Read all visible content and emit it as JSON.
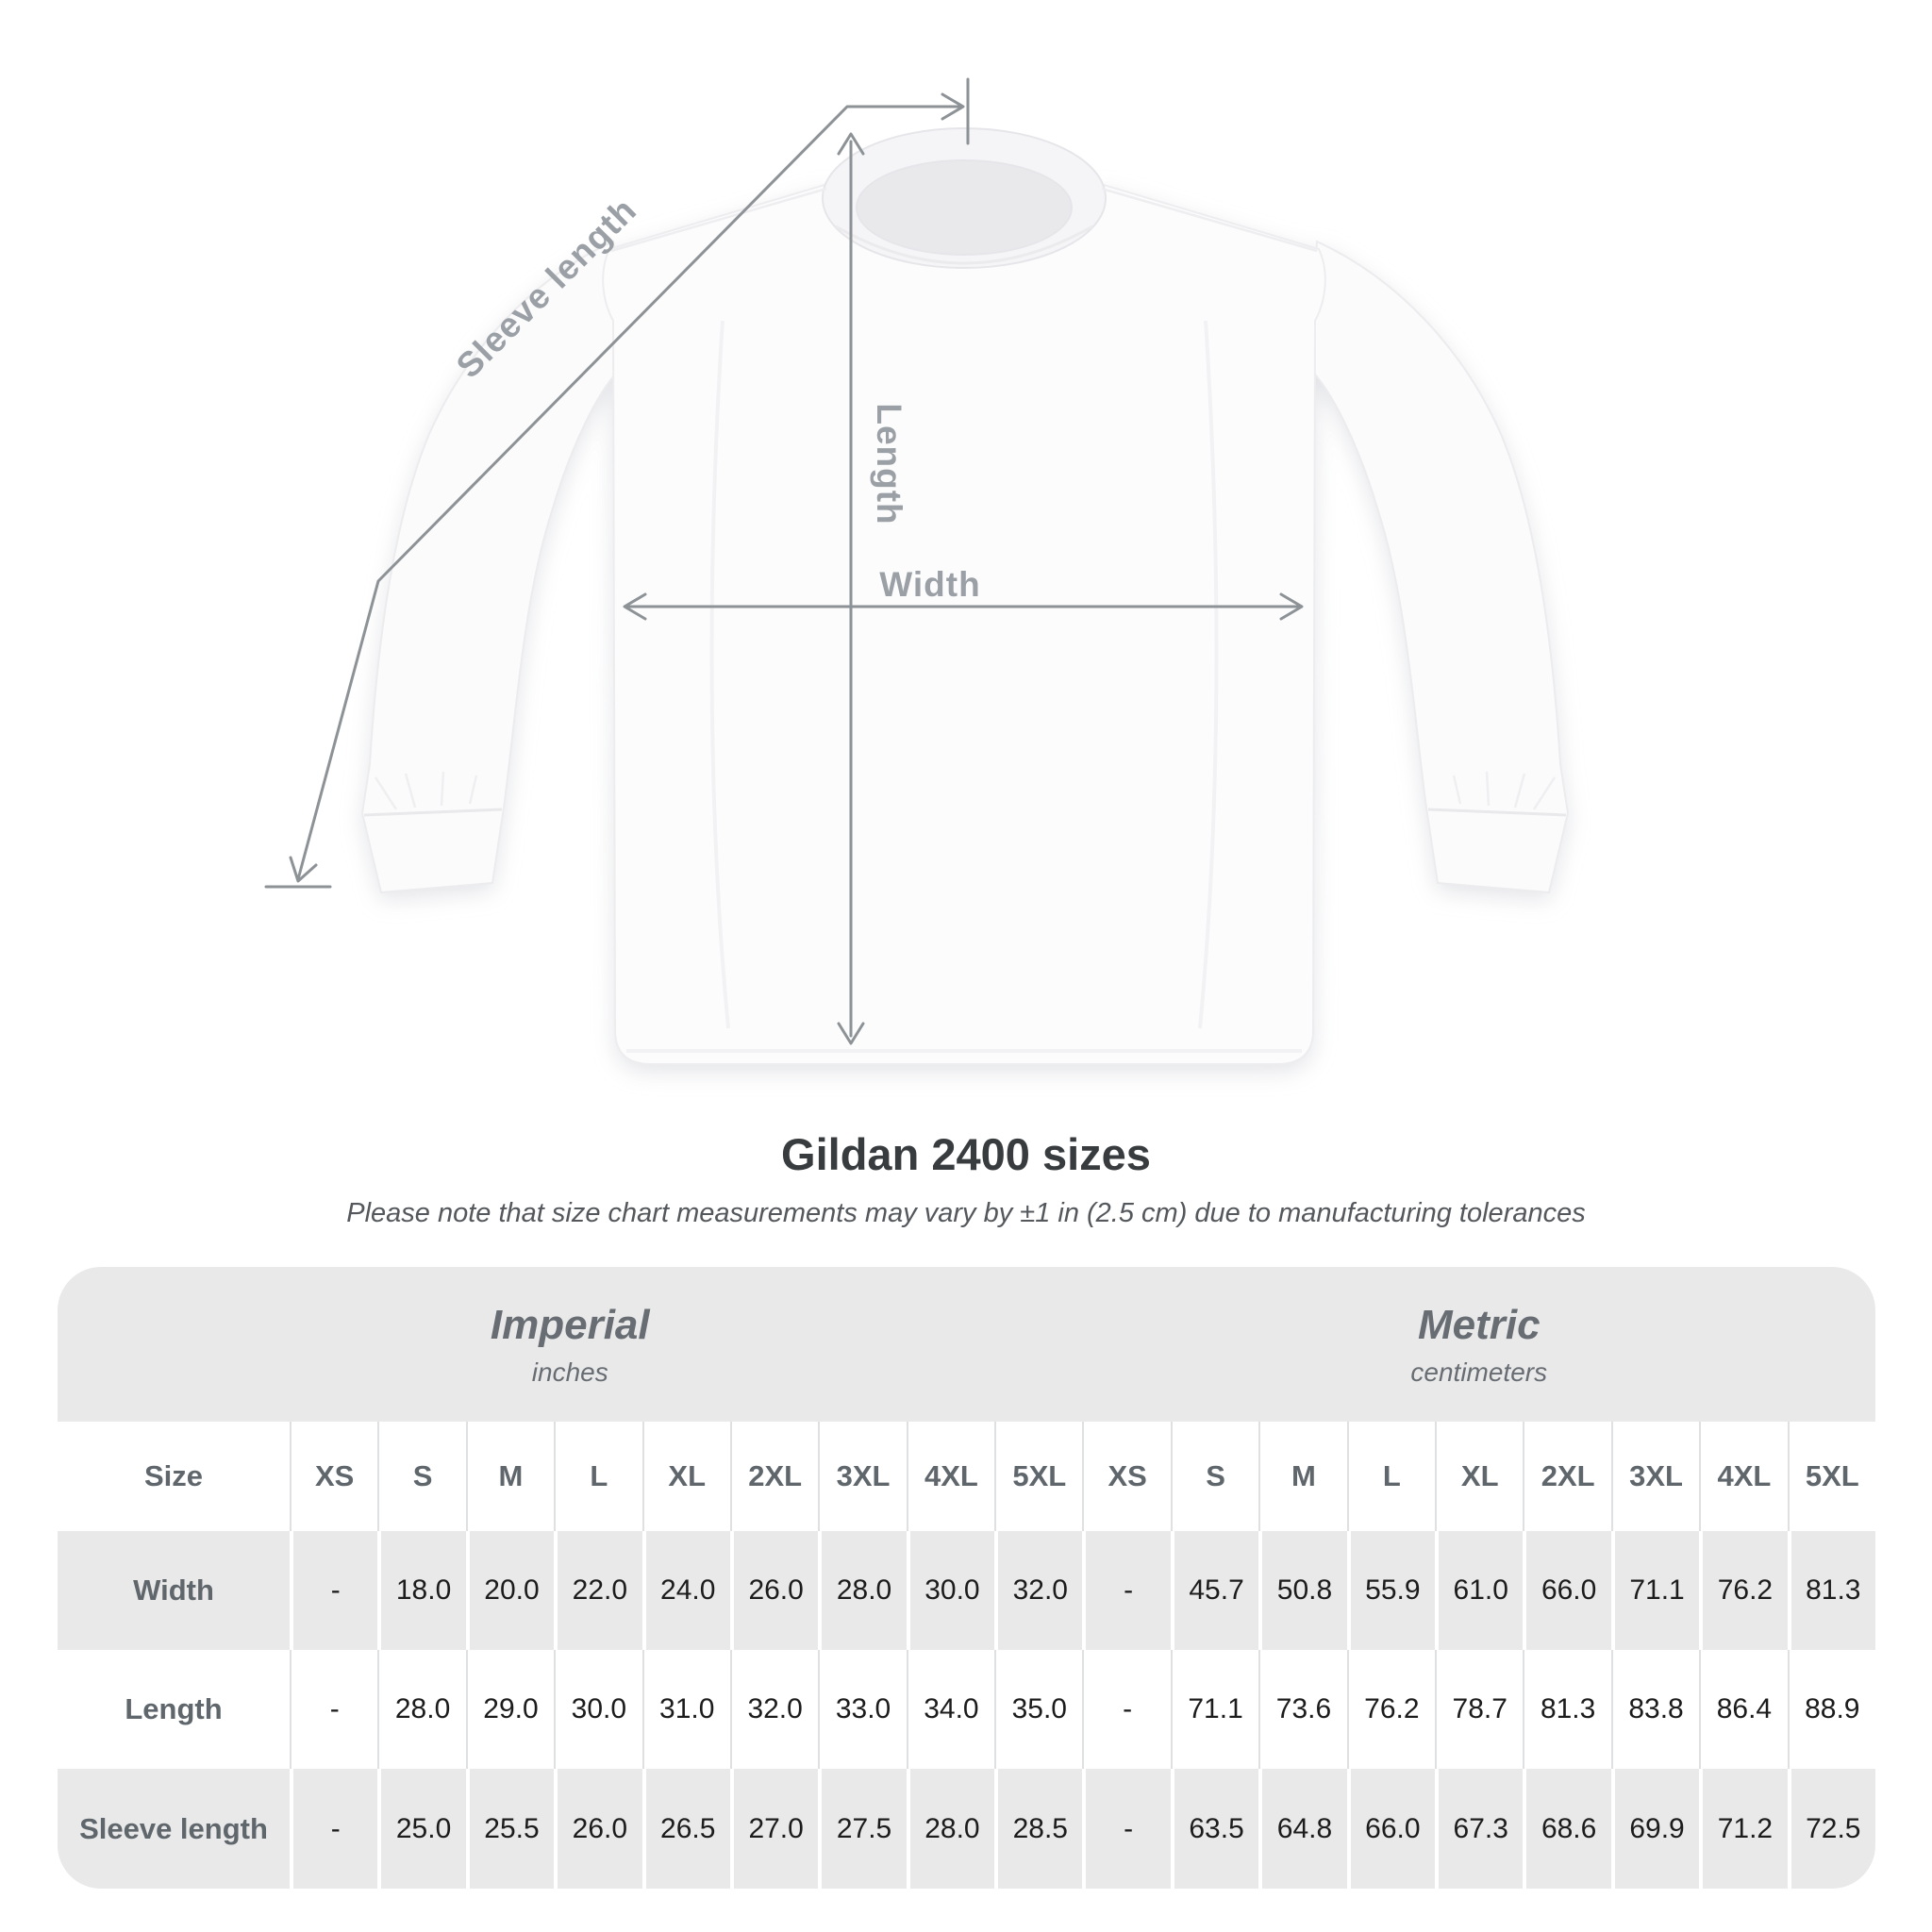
{
  "colors": {
    "table_band": "#e9e9e9",
    "measure_line": "#8d9296",
    "diagram_label": "#9aa0a5",
    "title_text": "#383c3f",
    "header_text": "#5f666c",
    "value_text": "#1c1c1c"
  },
  "diagram": {
    "sleeve_length_label": "Sleeve length",
    "length_label": "Length",
    "width_label": "Width"
  },
  "heading": {
    "title": "Gildan 2400 sizes",
    "subtitle": "Please note that size chart measurements may vary by ±1 in (2.5 cm) due to manufacturing tolerances"
  },
  "table": {
    "size_column_header": "Size",
    "groups": [
      {
        "name": "Imperial",
        "unit": "inches"
      },
      {
        "name": "Metric",
        "unit": "centimeters"
      }
    ],
    "sizes": [
      "XS",
      "S",
      "M",
      "L",
      "XL",
      "2XL",
      "3XL",
      "4XL",
      "5XL"
    ],
    "rows": [
      {
        "label": "Width",
        "imperial": [
          "-",
          "18.0",
          "20.0",
          "22.0",
          "24.0",
          "26.0",
          "28.0",
          "30.0",
          "32.0"
        ],
        "metric": [
          "-",
          "45.7",
          "50.8",
          "55.9",
          "61.0",
          "66.0",
          "71.1",
          "76.2",
          "81.3"
        ]
      },
      {
        "label": "Length",
        "imperial": [
          "-",
          "28.0",
          "29.0",
          "30.0",
          "31.0",
          "32.0",
          "33.0",
          "34.0",
          "35.0"
        ],
        "metric": [
          "-",
          "71.1",
          "73.6",
          "76.2",
          "78.7",
          "81.3",
          "83.8",
          "86.4",
          "88.9"
        ]
      },
      {
        "label": "Sleeve length",
        "imperial": [
          "-",
          "25.0",
          "25.5",
          "26.0",
          "26.5",
          "27.0",
          "27.5",
          "28.0",
          "28.5"
        ],
        "metric": [
          "-",
          "63.5",
          "64.8",
          "66.0",
          "67.3",
          "68.6",
          "69.9",
          "71.2",
          "72.5"
        ]
      }
    ]
  },
  "chart_data": {
    "type": "table",
    "title": "Gildan 2400 sizes",
    "note": "Please note that size chart measurements may vary by ±1 in (2.5 cm) due to manufacturing tolerances",
    "column_groups": [
      "Imperial (inches)",
      "Metric (centimeters)"
    ],
    "sizes": [
      "XS",
      "S",
      "M",
      "L",
      "XL",
      "2XL",
      "3XL",
      "4XL",
      "5XL"
    ],
    "measurements": [
      {
        "name": "Width",
        "imperial_inches": [
          null,
          18.0,
          20.0,
          22.0,
          24.0,
          26.0,
          28.0,
          30.0,
          32.0
        ],
        "metric_centimeters": [
          null,
          45.7,
          50.8,
          55.9,
          61.0,
          66.0,
          71.1,
          76.2,
          81.3
        ]
      },
      {
        "name": "Length",
        "imperial_inches": [
          null,
          28.0,
          29.0,
          30.0,
          31.0,
          32.0,
          33.0,
          34.0,
          35.0
        ],
        "metric_centimeters": [
          null,
          71.1,
          73.6,
          76.2,
          78.7,
          81.3,
          83.8,
          86.4,
          88.9
        ]
      },
      {
        "name": "Sleeve length",
        "imperial_inches": [
          null,
          25.0,
          25.5,
          26.0,
          26.5,
          27.0,
          27.5,
          28.0,
          28.5
        ],
        "metric_centimeters": [
          null,
          63.5,
          64.8,
          66.0,
          67.3,
          68.6,
          69.9,
          71.2,
          72.5
        ]
      }
    ]
  }
}
